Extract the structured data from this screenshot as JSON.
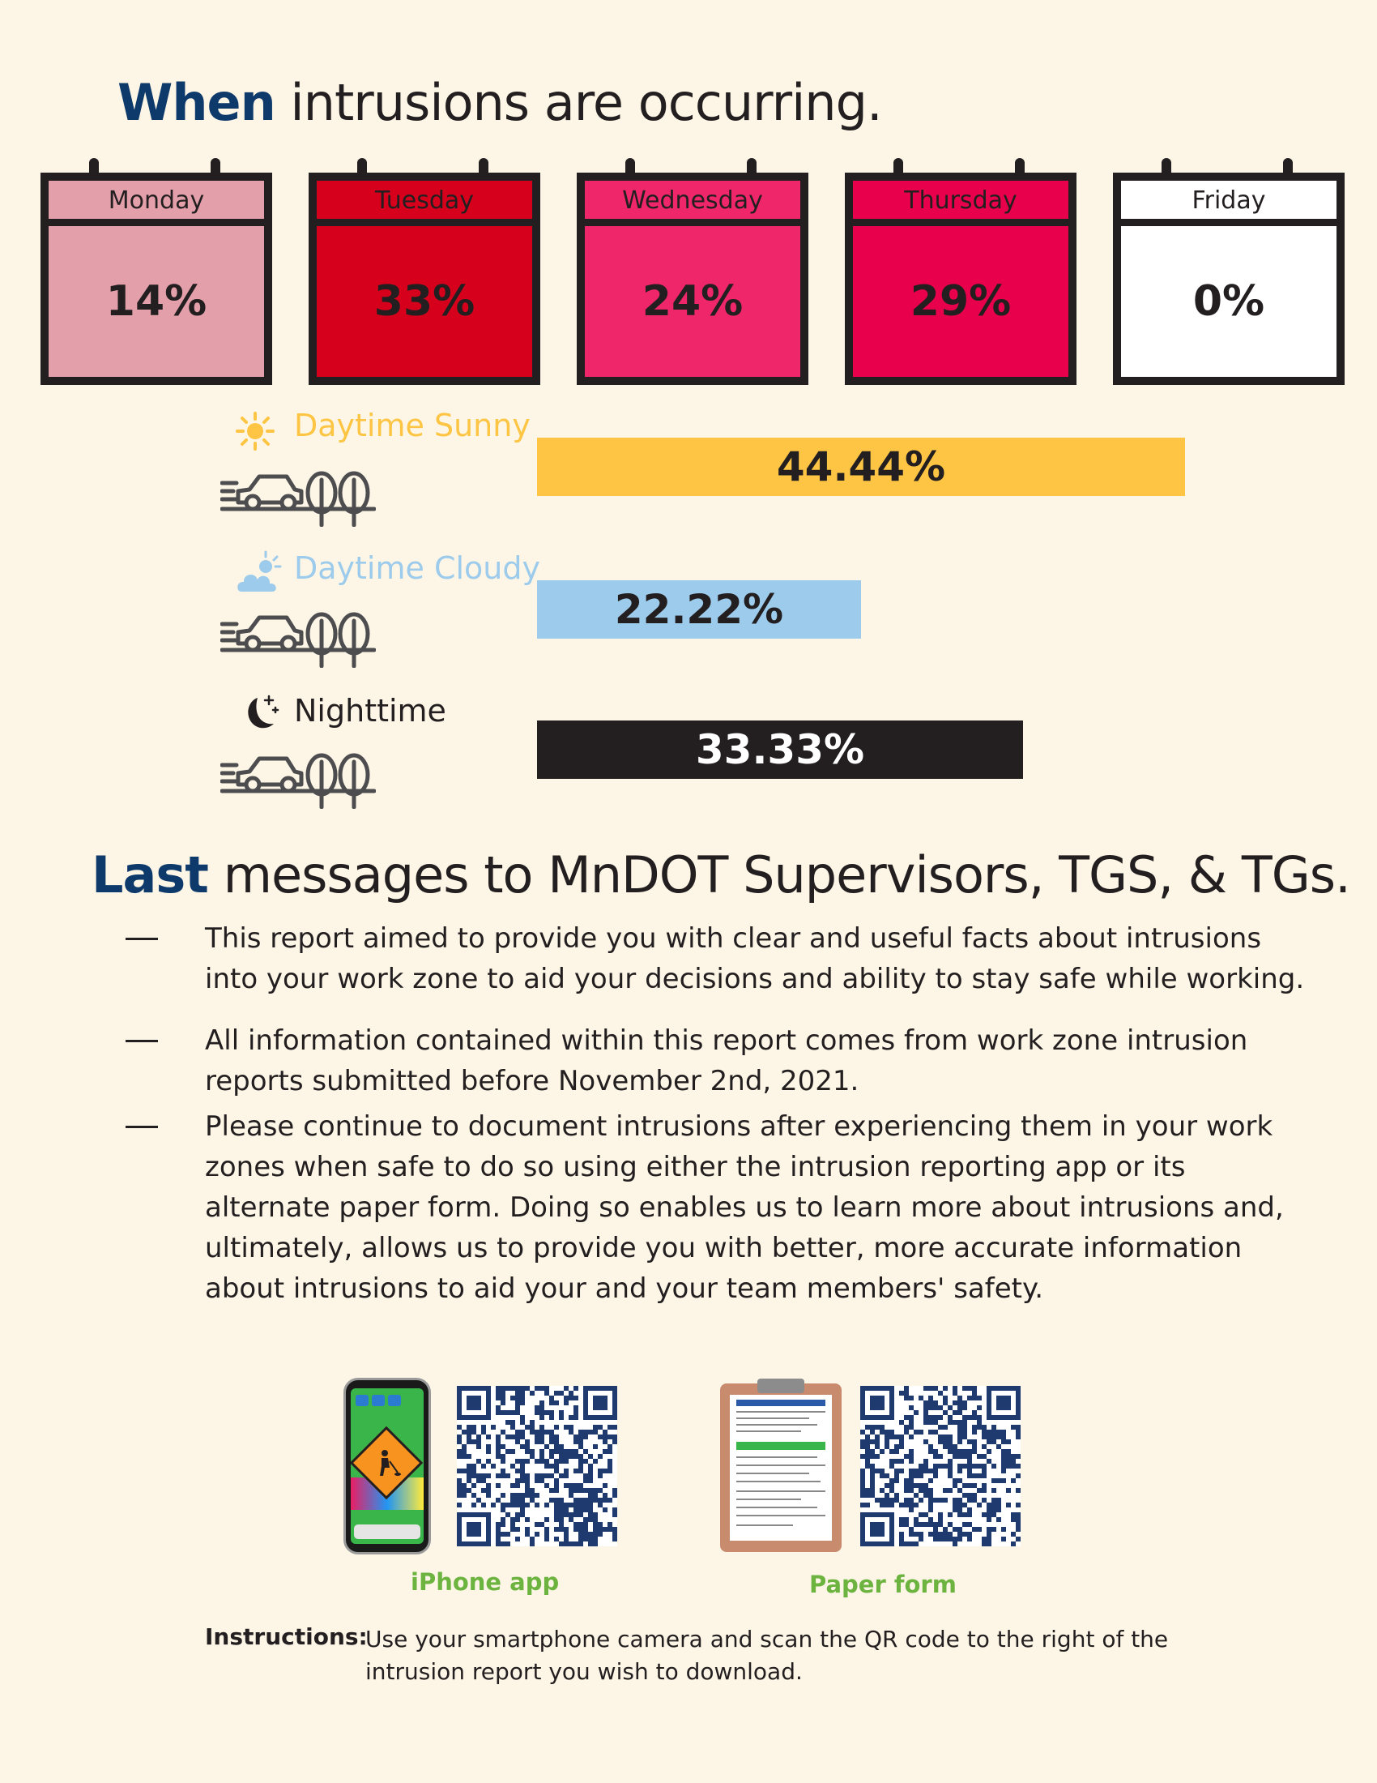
{
  "when_heading": {
    "strong": "When",
    "rest": " intrusions are occurring."
  },
  "days": [
    {
      "label": "Monday",
      "value": "14%",
      "head_color": "#e4a0aa",
      "body_color": "#e4a0aa"
    },
    {
      "label": "Tuesday",
      "value": "33%",
      "head_color": "#d6001c",
      "body_color": "#d6001c"
    },
    {
      "label": "Wednesday",
      "value": "24%",
      "head_color": "#f0266a",
      "body_color": "#f0266a"
    },
    {
      "label": "Thursday",
      "value": "29%",
      "head_color": "#e8004d",
      "body_color": "#e8004d"
    },
    {
      "label": "Friday",
      "value": "0%",
      "head_color": "#ffffff",
      "body_color": "#ffffff"
    }
  ],
  "conditions": [
    {
      "label": "Daytime Sunny",
      "value": "44.44%",
      "fraction": 0.4444,
      "color": "#fdc543",
      "label_color": "#fdc543",
      "text_color": "#231f20",
      "icon": "sun-icon"
    },
    {
      "label": "Daytime Cloudy",
      "value": "22.22%",
      "fraction": 0.2222,
      "color": "#9dcbec",
      "label_color": "#9dcbec",
      "text_color": "#231f20",
      "icon": "cloud-sun-icon"
    },
    {
      "label": "Nighttime",
      "value": "33.33%",
      "fraction": 0.3333,
      "color": "#231f20",
      "label_color": "#231f20",
      "text_color": "#ffffff",
      "icon": "moon-icon"
    }
  ],
  "last_heading": {
    "strong": "Last",
    "rest": " messages to MnDOT Supervisors, TGS, & TGs."
  },
  "bullets": [
    "This report aimed to provide you with clear and useful facts about intrusions into your work zone to aid your decisions and ability to stay safe while working.",
    "All information contained within this report comes from work zone intrusion reports submitted before November 2nd, 2021.",
    "Please continue to document intrusions after experiencing them in your work zones when safe to do so using either the intrusion reporting app or its alternate paper form. Doing so enables us to learn more about intrusions and, ultimately, allows us to provide you with better, more accurate information about intrusions to aid your and your team members' safety."
  ],
  "downloads": {
    "iphone_caption": "iPhone app",
    "paper_caption": "Paper form"
  },
  "instructions": {
    "label": "Instructions:",
    "text": "Use your smartphone camera and scan the QR code to the right of the intrusion report you wish to download."
  }
}
